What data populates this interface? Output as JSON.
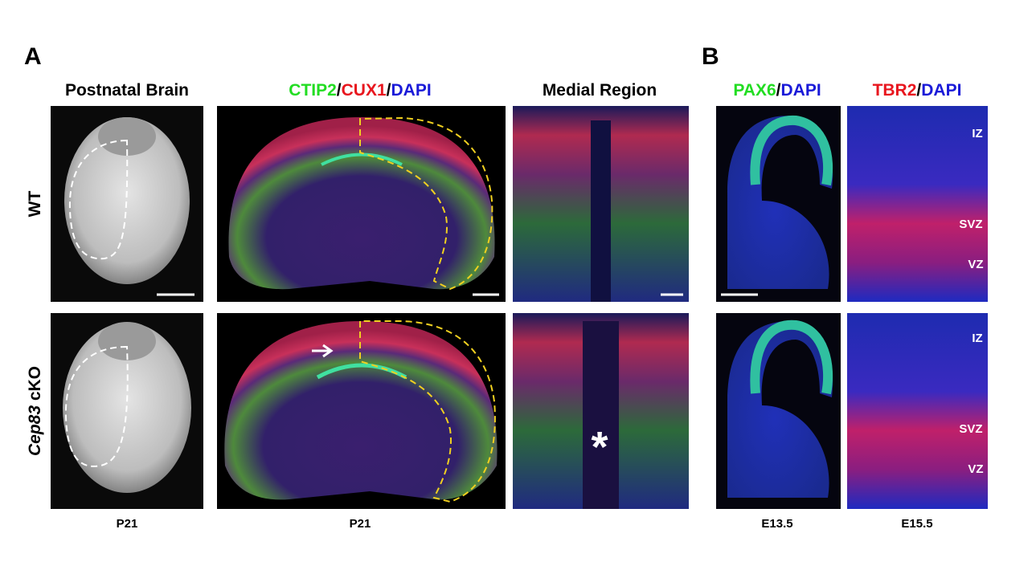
{
  "panel_a": {
    "label": "A",
    "columns": [
      {
        "title_parts": [
          "Postnatal Brain"
        ]
      },
      {
        "title_parts": [
          "CTIP2",
          "/",
          "CUX1",
          "/",
          "DAPI"
        ]
      },
      {
        "title_parts": [
          "Medial Region"
        ]
      }
    ],
    "rows": [
      {
        "label_parts": [
          "WT"
        ]
      },
      {
        "label_parts": [
          "Cep83",
          " cKO"
        ]
      }
    ],
    "footers": [
      "P21",
      "P21"
    ],
    "annotation": "*"
  },
  "panel_b": {
    "label": "B",
    "columns": [
      {
        "title_parts": [
          "PAX6",
          "/",
          "DAPI"
        ]
      },
      {
        "title_parts": [
          "TBR2",
          "/",
          "DAPI"
        ]
      }
    ],
    "zones": [
      [
        "IZ",
        "SVZ",
        "VZ"
      ],
      [
        "IZ",
        "SVZ",
        "VZ"
      ]
    ],
    "footers": [
      "E13.5",
      "E15.5"
    ]
  }
}
